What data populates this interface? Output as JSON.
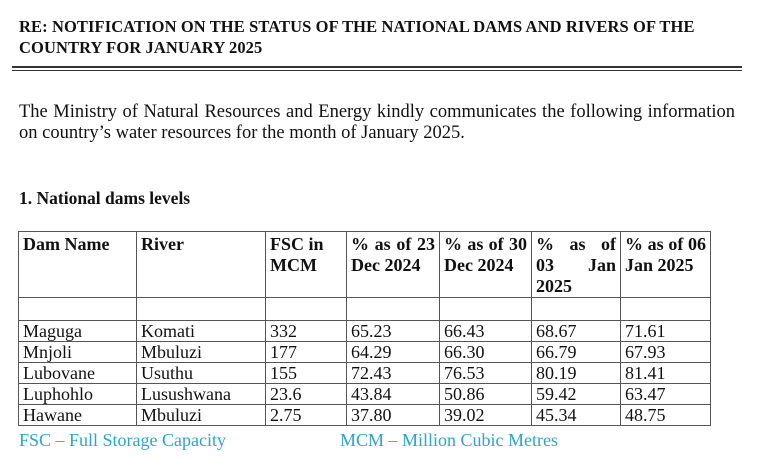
{
  "title": "RE: NOTIFICATION ON THE STATUS OF THE NATIONAL DAMS AND RIVERS OF THE COUNTRY FOR JANUARY 2025",
  "intro": "The Ministry of Natural Resources and Energy kindly communicates the following information on country’s water resources for the month of January 2025.",
  "section_heading": "1. National dams levels",
  "table": {
    "headers": [
      "Dam Name",
      "River",
      "FSC in MCM",
      "% as of 23 Dec 2024",
      "% as of 30 Dec 2024",
      "% as of 03 Jan 2025",
      "% as of 06 Jan 2025"
    ],
    "rows": [
      [
        "Maguga",
        "Komati",
        "332",
        "65.23",
        "66.43",
        "68.67",
        "71.61"
      ],
      [
        "Mnjoli",
        "Mbuluzi",
        "177",
        "64.29",
        "66.30",
        "66.79",
        "67.93"
      ],
      [
        "Lubovane",
        "Usuthu",
        "155",
        "72.43",
        "76.53",
        "80.19",
        "81.41"
      ],
      [
        "Luphohlo",
        "Lusushwana",
        "23.6",
        "43.84",
        "50.86",
        "59.42",
        "63.47"
      ],
      [
        "Hawane",
        "Mbuluzi",
        "2.75",
        "37.80",
        "39.02",
        "45.34",
        "48.75"
      ]
    ]
  },
  "footnotes": {
    "fsc": "FSC – Full Storage Capacity",
    "mcm": "MCM – Million Cubic Metres",
    "color": "#2aa6cc"
  }
}
